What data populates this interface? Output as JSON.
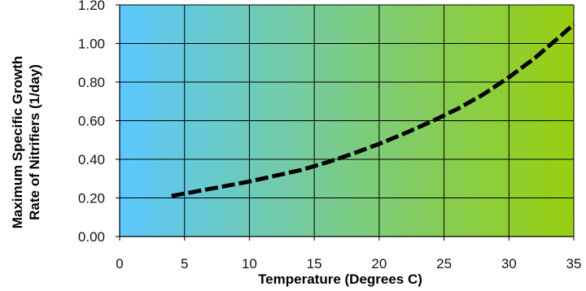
{
  "chart_data": {
    "type": "line",
    "title": "",
    "xlabel": "Temperature (Degrees C)",
    "ylabel_lines": [
      "Maximum Specific Growth",
      "Rate of Nitrifiers (1/day)"
    ],
    "xlim": [
      0,
      35
    ],
    "ylim": [
      0,
      1.2
    ],
    "x_ticks": [
      "0",
      "5",
      "10",
      "15",
      "20",
      "25",
      "30",
      "35"
    ],
    "y_ticks": [
      "0.00",
      "0.20",
      "0.40",
      "0.60",
      "0.80",
      "1.00",
      "1.20"
    ],
    "grid": true,
    "legend": "none",
    "background_gradient": [
      "#5cc8ff",
      "#98cf0e"
    ],
    "series": [
      {
        "line_style": "dashed",
        "color": "#000000",
        "x": [
          4,
          6,
          8,
          10,
          12,
          14,
          16,
          18,
          20,
          22,
          24,
          26,
          28,
          30,
          32,
          34,
          35
        ],
        "y": [
          0.21,
          0.235,
          0.26,
          0.285,
          0.315,
          0.345,
          0.385,
          0.43,
          0.48,
          0.535,
          0.595,
          0.66,
          0.735,
          0.825,
          0.925,
          1.04,
          1.1
        ]
      }
    ]
  }
}
